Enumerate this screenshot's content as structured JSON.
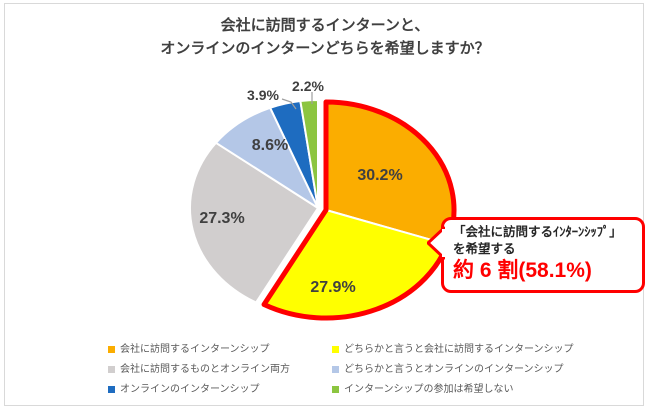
{
  "title": {
    "line1": "会社に訪問するインターンと、",
    "line2": "オンラインのインターンどちらを希望しますか？"
  },
  "chart_data": {
    "type": "pie",
    "title": "会社に訪問するインターンと、オンラインのインターンどちらを希望しますか？",
    "labels": [
      "会社に訪問するインターンシップ",
      "どちらかと言うと会社に訪問するインターンシップ",
      "会社に訪問するものとオンライン両方",
      "どちらかと言うとオンラインのインターンシップ",
      "オンラインのインターンシップ",
      "インターンシップの参加は希望しない"
    ],
    "values": [
      30.2,
      27.9,
      27.3,
      8.6,
      3.9,
      2.2
    ],
    "colors": [
      "#FBAD00",
      "#FFFF00",
      "#D1CECE",
      "#B4C7E7",
      "#1E6CC0",
      "#8CC540"
    ],
    "value_label_color": "#404040",
    "legend_position": "bottom",
    "highlight": {
      "slice_indices": [
        0,
        1
      ],
      "outline_color": "#FF0000",
      "combined_share": "58.1%"
    }
  },
  "callout": {
    "line1": "「会社に訪問するｲﾝﾀｰﾝｼｯﾌﾟ」",
    "line2": "を希望する",
    "line3": "約 6 割(58.1%)",
    "border_color": "#FF0000"
  },
  "frame": {
    "border_color": "#D9D9D9"
  }
}
